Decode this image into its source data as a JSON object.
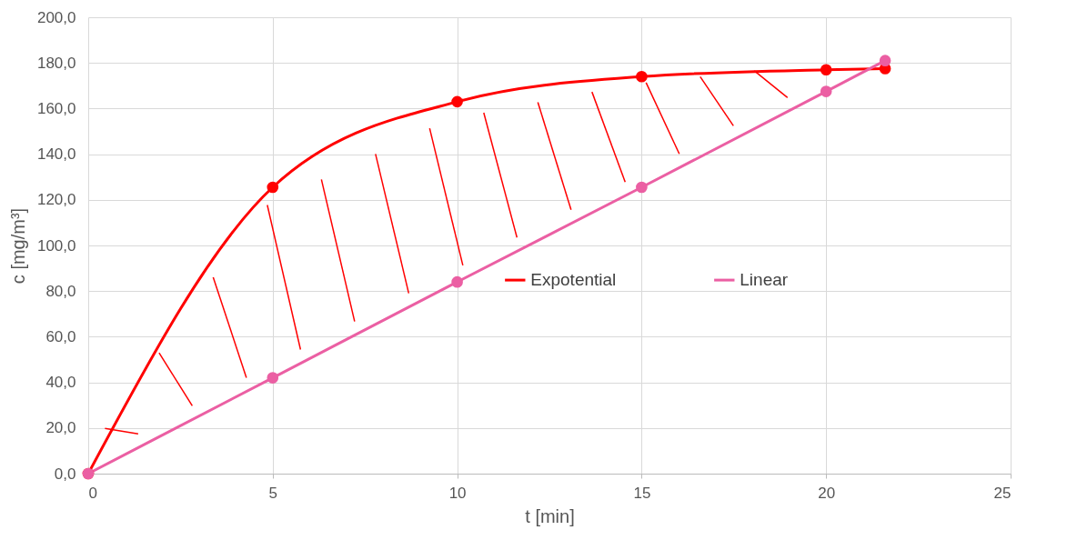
{
  "chart_data": {
    "type": "line",
    "xlabel": "t [min]",
    "ylabel": "c [mg/m³]",
    "xlim": [
      0,
      25
    ],
    "xticks": [
      0,
      5,
      10,
      15,
      20,
      25
    ],
    "ylim": [
      0,
      200
    ],
    "yticks": [
      {
        "value": 0,
        "label": "0,0"
      },
      {
        "value": 20,
        "label": "20,0"
      },
      {
        "value": 40,
        "label": "40,0"
      },
      {
        "value": 60,
        "label": "60,0"
      },
      {
        "value": 80,
        "label": "80,0"
      },
      {
        "value": 100,
        "label": "100,0"
      },
      {
        "value": 120,
        "label": "120,0"
      },
      {
        "value": 140,
        "label": "140,0"
      },
      {
        "value": 160,
        "label": "160,0"
      },
      {
        "value": 180,
        "label": "180,0"
      },
      {
        "value": 200,
        "label": "200,0"
      }
    ],
    "grid": true,
    "legend": "right",
    "marker": "circle",
    "line_style": "solid",
    "series": [
      {
        "name": "Expotential",
        "color": "#ff0000",
        "x": [
          0,
          5,
          10,
          15,
          20,
          21.6
        ],
        "values": [
          0,
          125.5,
          163,
          174,
          177,
          177.5
        ]
      },
      {
        "name": "Linear",
        "color": "#eb5fa3",
        "x": [
          0,
          5,
          10,
          15,
          20,
          21.6
        ],
        "values": [
          0,
          42,
          84,
          125.5,
          167.5,
          181
        ]
      }
    ]
  }
}
